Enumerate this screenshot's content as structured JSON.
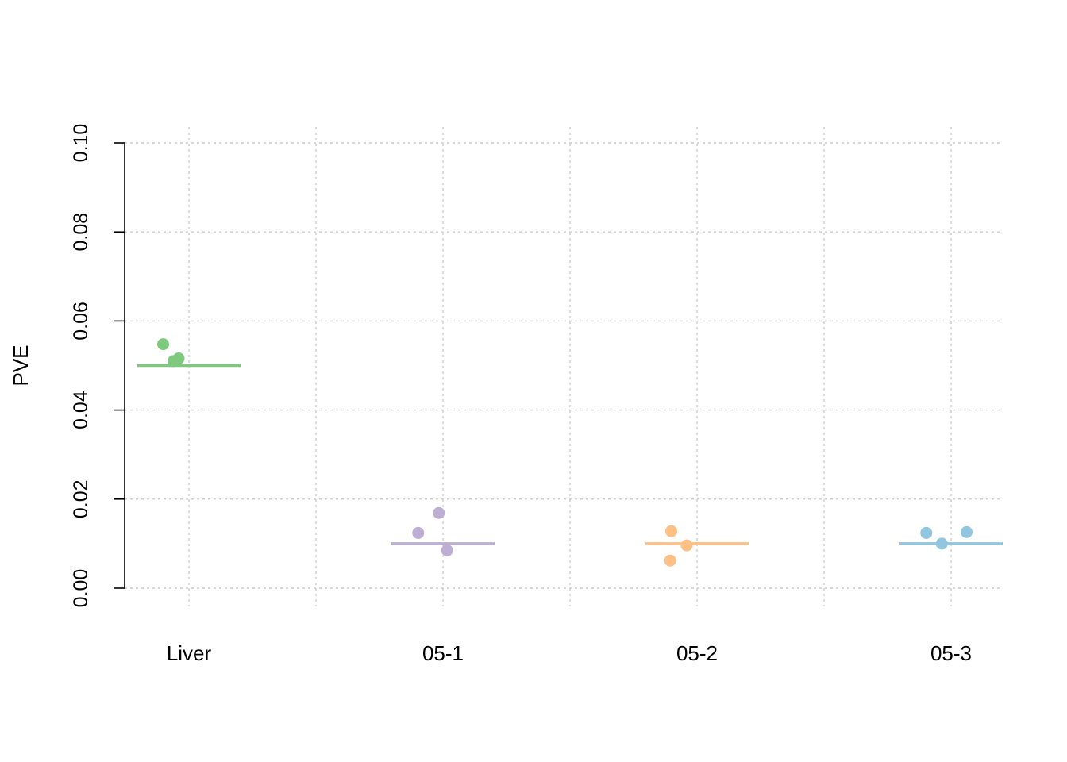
{
  "chart_data": {
    "type": "scatter",
    "title": "",
    "xlabel": "",
    "ylabel": "PVE",
    "ylim": [
      0,
      0.1
    ],
    "yticks": [
      "0.00",
      "0.02",
      "0.04",
      "0.06",
      "0.08",
      "0.10"
    ],
    "ytick_values": [
      0,
      0.02,
      0.04,
      0.06,
      0.08,
      0.1
    ],
    "grid": true,
    "categories": [
      "Liver",
      "05-1",
      "05-2",
      "05-3"
    ],
    "groups": [
      {
        "category": "Liver",
        "color": "#7fc97f",
        "mean": 0.05,
        "points": [
          {
            "x_offset": -0.25,
            "y": 0.0548
          },
          {
            "x_offset": -0.15,
            "y": 0.051
          },
          {
            "x_offset": -0.1,
            "y": 0.0516
          }
        ]
      },
      {
        "category": "05-1",
        "color": "#beaed4",
        "mean": 0.01,
        "points": [
          {
            "x_offset": -0.24,
            "y": 0.0124
          },
          {
            "x_offset": -0.04,
            "y": 0.0169
          },
          {
            "x_offset": 0.04,
            "y": 0.0085
          }
        ]
      },
      {
        "category": "05-2",
        "color": "#fdc086",
        "mean": 0.01,
        "points": [
          {
            "x_offset": -0.26,
            "y": 0.0062
          },
          {
            "x_offset": -0.25,
            "y": 0.0128
          },
          {
            "x_offset": -0.1,
            "y": 0.0096
          }
        ]
      },
      {
        "category": "05-3",
        "color": "#92c5de",
        "mean": 0.01,
        "points": [
          {
            "x_offset": -0.24,
            "y": 0.0124
          },
          {
            "x_offset": -0.09,
            "y": 0.01
          },
          {
            "x_offset": 0.15,
            "y": 0.0126
          }
        ]
      }
    ]
  }
}
